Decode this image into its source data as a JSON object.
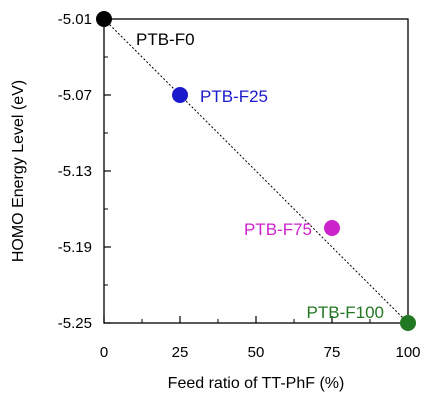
{
  "chart_data": {
    "type": "scatter",
    "xlabel": "Feed ratio of TT-PhF (%)",
    "ylabel": "HOMO Energy Level (eV)",
    "xlim": [
      0,
      100
    ],
    "ylim": [
      -5.25,
      -5.01
    ],
    "x_ticks": [
      0,
      25,
      50,
      75,
      100
    ],
    "x_tick_labels": [
      "0",
      "25",
      "50",
      "75",
      "100"
    ],
    "y_ticks": [
      -5.01,
      -5.07,
      -5.13,
      -5.19,
      -5.25
    ],
    "y_tick_labels": [
      "-5.01",
      "-5.07",
      "-5.13",
      "-5.19",
      "-5.25"
    ],
    "points": [
      {
        "name": "PTB-F0",
        "x": 0,
        "y": -5.01,
        "color": "#000000",
        "label_position": "below-right"
      },
      {
        "name": "PTB-F25",
        "x": 25,
        "y": -5.07,
        "color": "#1a1acc",
        "label_position": "right"
      },
      {
        "name": "PTB-F75",
        "x": 75,
        "y": -5.175,
        "color": "#cc22cc",
        "label_position": "left"
      },
      {
        "name": "PTB-F100",
        "x": 100,
        "y": -5.25,
        "color": "#227722",
        "label_position": "above-left"
      }
    ],
    "trend_line": {
      "from": [
        0,
        -5.01
      ],
      "to": [
        100,
        -5.25
      ],
      "style": "dotted"
    },
    "grid": false
  }
}
